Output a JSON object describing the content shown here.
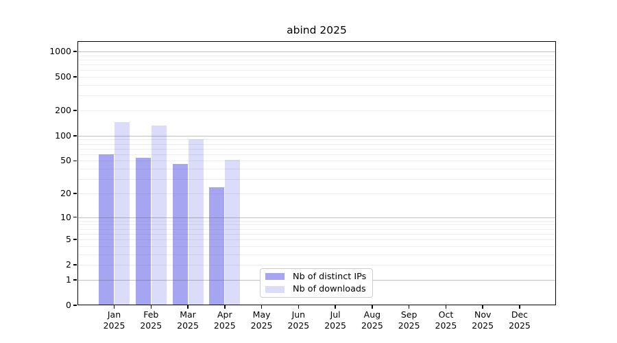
{
  "chart_data": {
    "type": "bar",
    "title": "abind 2025",
    "scale": "log1p",
    "ylim": [
      0,
      1000
    ],
    "y_ticks": [
      1000,
      500,
      200,
      100,
      50,
      20,
      10,
      5,
      2,
      1,
      0
    ],
    "y_minor_gridlines": [
      2,
      3,
      4,
      5,
      6,
      7,
      8,
      9,
      20,
      30,
      40,
      50,
      60,
      70,
      80,
      90,
      200,
      300,
      400,
      500,
      600,
      700,
      800,
      900
    ],
    "y_major_gridlines": [
      1,
      10,
      100,
      1000
    ],
    "grid": "horizontal",
    "legend_position": "lower center inside plot",
    "categories": [
      "Jan",
      "Feb",
      "Mar",
      "Apr",
      "May",
      "Jun",
      "Jul",
      "Aug",
      "Sep",
      "Oct",
      "Nov",
      "Dec"
    ],
    "x_year": "2025",
    "series": [
      {
        "name": "Nb of distinct IPs",
        "color": "#a5a5f2",
        "values": [
          60,
          54,
          46,
          24,
          null,
          null,
          null,
          null,
          null,
          null,
          null,
          null
        ]
      },
      {
        "name": "Nb of downloads",
        "color": "#dbdbfa",
        "values": [
          145,
          132,
          90,
          51,
          null,
          null,
          null,
          null,
          null,
          null,
          null,
          null
        ]
      }
    ]
  },
  "colors": {
    "background": "#ffffff",
    "axis": "#000000",
    "major_grid": "#b4b4b4",
    "minor_grid": "#e8e8e8",
    "legend_border": "#cccccc",
    "text": "#000000"
  }
}
